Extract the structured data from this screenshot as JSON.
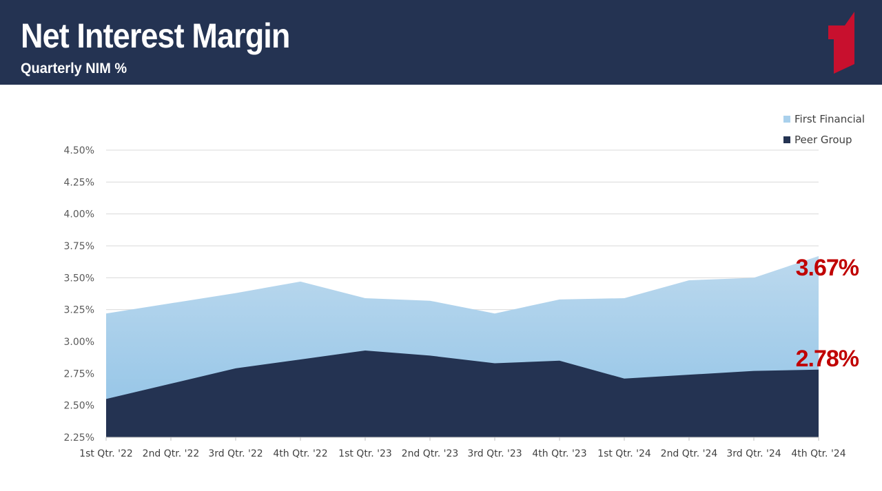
{
  "header": {
    "title": "Net Interest Margin",
    "subtitle": "Quarterly NIM %"
  },
  "colors": {
    "header_bg": "#243352",
    "first_financial_top": "#bcd9ee",
    "first_financial_bottom": "#8fc2e6",
    "peer_group": "#243352",
    "callout": "#c00000",
    "logo": "#c8102e"
  },
  "chart_data": {
    "type": "area",
    "categories": [
      "1st Qtr. '22",
      "2nd Qtr. '22",
      "3rd Qtr. '22",
      "4th Qtr. '22",
      "1st Qtr. '23",
      "2nd Qtr. '23",
      "3rd Qtr. '23",
      "4th Qtr. '23",
      "1st Qtr. '24",
      "2nd Qtr. '24",
      "3rd Qtr. '24",
      "4th Qtr. '24"
    ],
    "series": [
      {
        "name": "First Financial",
        "values": [
          3.22,
          3.3,
          3.38,
          3.47,
          3.34,
          3.32,
          3.22,
          3.33,
          3.34,
          3.48,
          3.5,
          3.67
        ]
      },
      {
        "name": "Peer Group",
        "values": [
          2.55,
          2.67,
          2.79,
          2.86,
          2.93,
          2.89,
          2.83,
          2.85,
          2.71,
          2.74,
          2.77,
          2.78
        ]
      }
    ],
    "ylim": [
      2.25,
      4.5
    ],
    "yticks": [
      "2.25%",
      "2.50%",
      "2.75%",
      "3.00%",
      "3.25%",
      "3.50%",
      "3.75%",
      "4.00%",
      "4.25%",
      "4.50%"
    ],
    "ytick_values": [
      2.25,
      2.5,
      2.75,
      3.0,
      3.25,
      3.5,
      3.75,
      4.0,
      4.25,
      4.5
    ],
    "grid": true,
    "legend_position": "top-right",
    "annotations": [
      {
        "series": "First Financial",
        "text": "3.67%"
      },
      {
        "series": "Peer Group",
        "text": "2.78%"
      }
    ]
  }
}
